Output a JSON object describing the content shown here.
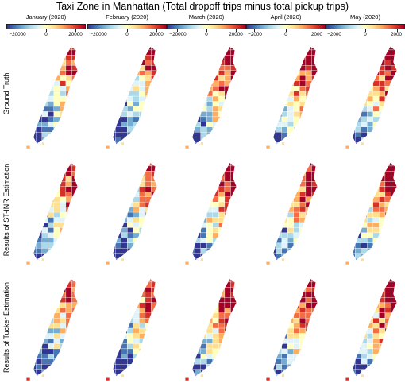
{
  "title": "Taxi Zone in Manhattan (Total dropoff trips minus total pickup trips)",
  "columns": [
    {
      "label": "January (2020)",
      "ticks": [
        "−20000",
        "0",
        "20000"
      ]
    },
    {
      "label": "February (2020)",
      "ticks": [
        "−20000",
        "0",
        "20000"
      ]
    },
    {
      "label": "March (2020)",
      "ticks": [
        "−20000",
        "0",
        "20000"
      ]
    },
    {
      "label": "April (2020)",
      "ticks": [
        "−2000",
        "0",
        "2000"
      ]
    },
    {
      "label": "May (2020)",
      "ticks": [
        "−2000",
        "0",
        "2000"
      ]
    }
  ],
  "rows": [
    {
      "label": "Ground Truth"
    },
    {
      "label": "Results of ST-INR Estimation"
    },
    {
      "label": "Results of Tucker Estimation"
    }
  ],
  "colormap": {
    "name": "RdYlBu_r",
    "stops": [
      "#313695",
      "#4575b4",
      "#74add1",
      "#abd9e9",
      "#e0f3f8",
      "#ffffbf",
      "#fee090",
      "#fdae61",
      "#f46d43",
      "#d73027",
      "#a50026"
    ]
  }
}
